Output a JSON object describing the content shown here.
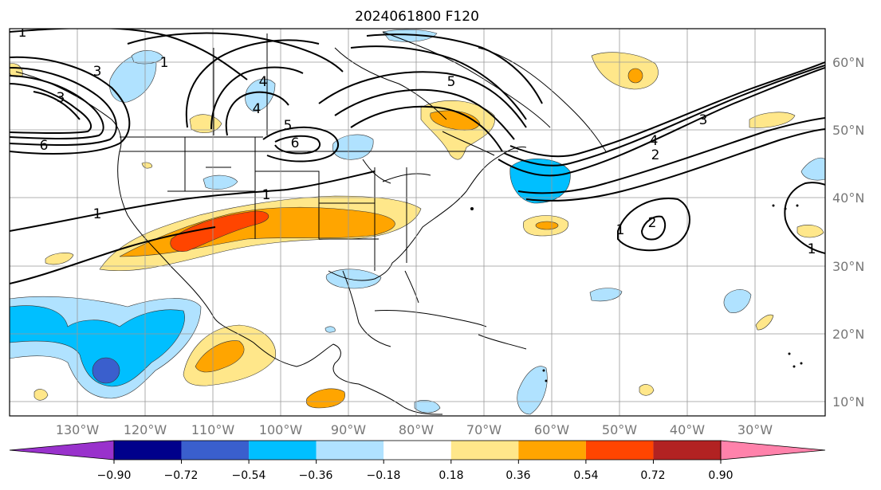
{
  "title": "2024061800 F120",
  "lat_labels": [
    "60°N",
    "50°N",
    "40°N",
    "30°N",
    "20°N",
    "10°N"
  ],
  "lon_labels": [
    "130°W",
    "120°W",
    "110°W",
    "100°W",
    "90°W",
    "80°W",
    "70°W",
    "60°W",
    "50°W",
    "40°W",
    "30°W"
  ],
  "colorbar": {
    "tick_labels": [
      "−0.90",
      "−0.72",
      "−0.54",
      "−0.36",
      "−0.18",
      "0.18",
      "0.36",
      "0.54",
      "0.72",
      "0.90"
    ],
    "colors": [
      "#9932cc",
      "#00008b",
      "#3a5fcd",
      "#00bfff",
      "#b0e2ff",
      "#ffffff",
      "#ffe78a",
      "#ffa500",
      "#ff4500",
      "#b22222",
      "#ff82ab"
    ]
  },
  "contour_labels": [
    "3",
    "5",
    "1",
    "4",
    "4",
    "6",
    "3",
    "6",
    "5",
    "1",
    "2",
    "1",
    "1",
    "2",
    "3",
    "4",
    "1",
    "1"
  ]
}
